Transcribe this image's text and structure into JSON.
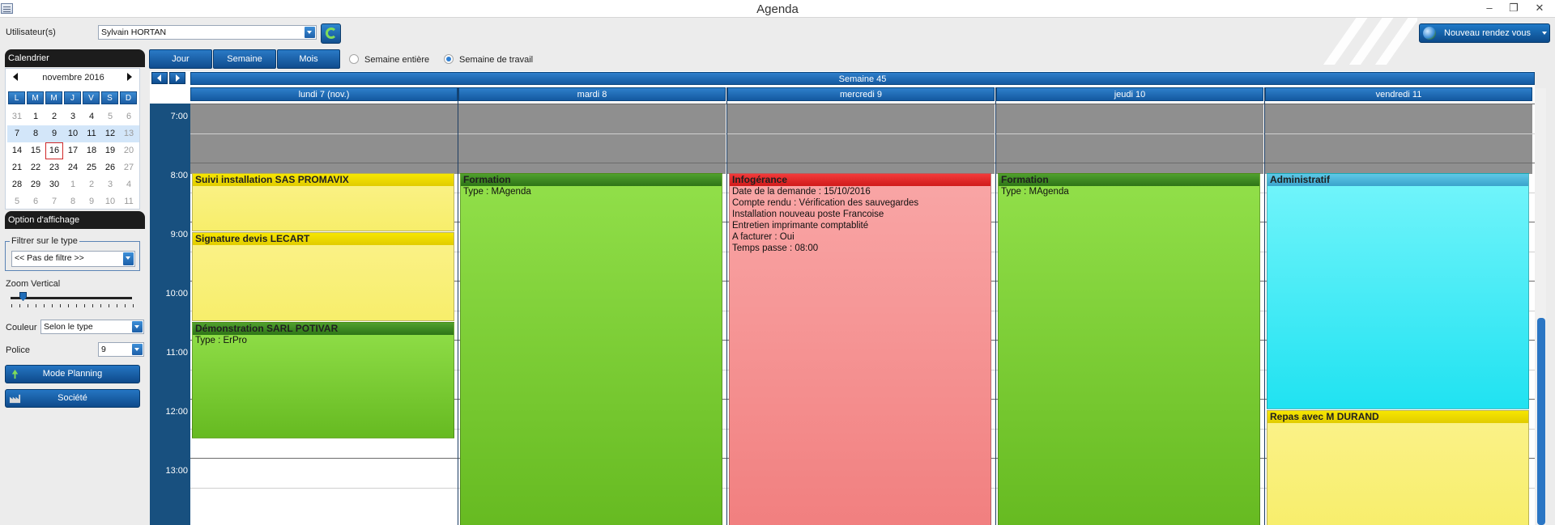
{
  "window": {
    "title": "Agenda",
    "minimize": "–",
    "restore": "❐",
    "close": "✕"
  },
  "user": {
    "label": "Utilisateur(s)",
    "value": "Sylvain HORTAN"
  },
  "new_appointment": {
    "label": "Nouveau rendez vous"
  },
  "calendar_panel": {
    "title": "Calendrier",
    "month": "novembre 2016",
    "weekdays": [
      "L",
      "M",
      "M",
      "J",
      "V",
      "S",
      "D"
    ],
    "weeks": [
      [
        "31",
        "1",
        "2",
        "3",
        "4",
        "5",
        "6"
      ],
      [
        "7",
        "8",
        "9",
        "10",
        "11",
        "12",
        "13"
      ],
      [
        "14",
        "15",
        "16",
        "17",
        "18",
        "19",
        "20"
      ],
      [
        "21",
        "22",
        "23",
        "24",
        "25",
        "26",
        "27"
      ],
      [
        "28",
        "29",
        "30",
        "1",
        "2",
        "3",
        "4"
      ],
      [
        "5",
        "6",
        "7",
        "8",
        "9",
        "10",
        "11"
      ]
    ],
    "today": "16"
  },
  "display_options": {
    "title": "Option d'affichage",
    "filter_legend": "Filtrer sur le type",
    "filter_value": "<< Pas de filtre >>",
    "zoom_label": "Zoom Vertical",
    "zoom_level": 0.1,
    "color_label": "Couleur",
    "color_value": "Selon le type",
    "font_label": "Police",
    "font_value": "9",
    "planning_button": "Mode Planning",
    "company_button": "Société"
  },
  "view_tabs": [
    "Jour",
    "Semaine",
    "Mois"
  ],
  "week_options": [
    {
      "label": "Semaine entière",
      "selected": false
    },
    {
      "label": "Semaine de travail",
      "selected": true
    }
  ],
  "week_label": "Semaine 45",
  "days": [
    "lundi 7 (nov.)",
    "mardi 8",
    "mercredi 9",
    "jeudi 10",
    "vendredi 11"
  ],
  "hours": [
    "7:00",
    "8:00",
    "9:00",
    "10:00",
    "11:00",
    "12:00",
    "13:00"
  ],
  "events": [
    {
      "title": "Suivi installation SAS PROMAVIX",
      "body": []
    },
    {
      "title": "Signature devis LECART",
      "body": []
    },
    {
      "title": "Démonstration SARL POTIVAR",
      "body": [
        "Type : ErPro"
      ]
    },
    {
      "title": "Formation",
      "body": [
        "Type : MAgenda"
      ]
    },
    {
      "title": "Infogérance",
      "body": [
        "Date de la demande : 15/10/2016",
        "Compte rendu : Vérification des sauvegardes",
        "Installation nouveau poste Francoise",
        "Entretien imprimante comptablité",
        "A facturer : Oui",
        "Temps passe : 08:00"
      ]
    },
    {
      "title": "Formation",
      "body": [
        "Type : MAgenda"
      ]
    },
    {
      "title": "Administratif",
      "body": []
    },
    {
      "title": "Repas avec M DURAND",
      "body": []
    }
  ],
  "colors": {
    "accent": "#1c5da3",
    "time_column": "#18507f",
    "off_hours": "#8f8f8f"
  }
}
